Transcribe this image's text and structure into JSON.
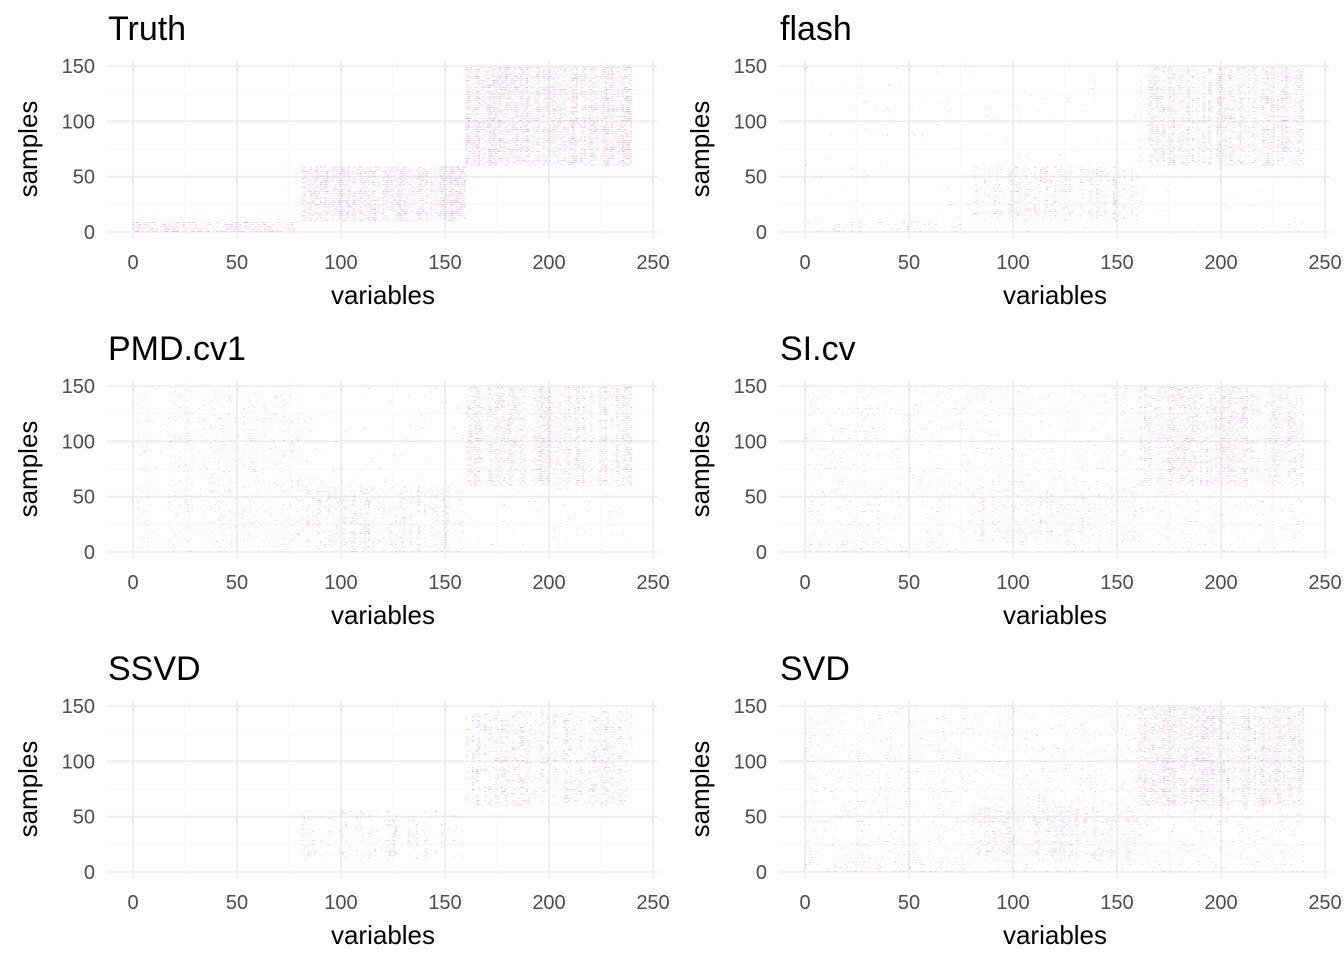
{
  "chart_data": [
    {
      "type": "heatmap",
      "title": "Truth",
      "xlabel": "variables",
      "ylabel": "samples",
      "xlim": [
        0,
        240
      ],
      "ylim": [
        0,
        150
      ],
      "xticks": [
        "0",
        "50",
        "100",
        "150",
        "200",
        "250"
      ],
      "yticks": [
        "0",
        "50",
        "100",
        "150"
      ],
      "grid": true,
      "blocks": [
        {
          "x": [
            1,
            80
          ],
          "y": [
            1,
            10
          ],
          "density": 0.9,
          "intensity": 0.55
        },
        {
          "x": [
            81,
            160
          ],
          "y": [
            11,
            60
          ],
          "density": 0.9,
          "intensity": 0.55
        },
        {
          "x": [
            161,
            240
          ],
          "y": [
            61,
            150
          ],
          "density": 0.9,
          "intensity": 0.6
        }
      ],
      "noise": 0
    },
    {
      "type": "heatmap",
      "title": "flash",
      "xlabel": "variables",
      "ylabel": "samples",
      "xlim": [
        0,
        240
      ],
      "ylim": [
        0,
        150
      ],
      "xticks": [
        "0",
        "50",
        "100",
        "150",
        "200",
        "250"
      ],
      "yticks": [
        "0",
        "50",
        "100",
        "150"
      ],
      "grid": true,
      "blocks": [
        {
          "x": [
            1,
            80
          ],
          "y": [
            1,
            10
          ],
          "density": 0.35,
          "intensity": 0.45
        },
        {
          "x": [
            81,
            160
          ],
          "y": [
            11,
            60
          ],
          "density": 0.55,
          "intensity": 0.5
        },
        {
          "x": [
            161,
            240
          ],
          "y": [
            61,
            150
          ],
          "density": 0.75,
          "intensity": 0.55
        }
      ],
      "noise": 0.04
    },
    {
      "type": "heatmap",
      "title": "PMD.cv1",
      "xlabel": "variables",
      "ylabel": "samples",
      "xlim": [
        0,
        240
      ],
      "ylim": [
        0,
        150
      ],
      "xticks": [
        "0",
        "50",
        "100",
        "150",
        "200",
        "250"
      ],
      "yticks": [
        "0",
        "50",
        "100",
        "150"
      ],
      "grid": true,
      "blocks": [
        {
          "x": [
            1,
            80
          ],
          "y": [
            1,
            150
          ],
          "density": 0.3,
          "intensity": 0.35
        },
        {
          "x": [
            81,
            160
          ],
          "y": [
            1,
            60
          ],
          "density": 0.55,
          "intensity": 0.45
        },
        {
          "x": [
            161,
            240
          ],
          "y": [
            61,
            150
          ],
          "density": 0.75,
          "intensity": 0.5
        }
      ],
      "noise": 0.08
    },
    {
      "type": "heatmap",
      "title": "SI.cv",
      "xlabel": "variables",
      "ylabel": "samples",
      "xlim": [
        0,
        240
      ],
      "ylim": [
        0,
        150
      ],
      "xticks": [
        "0",
        "50",
        "100",
        "150",
        "200",
        "250"
      ],
      "yticks": [
        "0",
        "50",
        "100",
        "150"
      ],
      "grid": true,
      "blocks": [
        {
          "x": [
            1,
            80
          ],
          "y": [
            1,
            10
          ],
          "density": 0.4,
          "intensity": 0.35
        },
        {
          "x": [
            81,
            160
          ],
          "y": [
            11,
            60
          ],
          "density": 0.45,
          "intensity": 0.35
        },
        {
          "x": [
            161,
            240
          ],
          "y": [
            61,
            150
          ],
          "density": 0.7,
          "intensity": 0.45
        }
      ],
      "noise": 0.3
    },
    {
      "type": "heatmap",
      "title": "SSVD",
      "xlabel": "variables",
      "ylabel": "samples",
      "xlim": [
        0,
        240
      ],
      "ylim": [
        0,
        150
      ],
      "xticks": [
        "0",
        "50",
        "100",
        "150",
        "200",
        "250"
      ],
      "yticks": [
        "0",
        "50",
        "100",
        "150"
      ],
      "grid": true,
      "blocks": [
        {
          "x": [
            81,
            160
          ],
          "y": [
            11,
            55
          ],
          "density": 0.35,
          "intensity": 0.5
        },
        {
          "x": [
            161,
            240
          ],
          "y": [
            61,
            145
          ],
          "density": 0.45,
          "intensity": 0.55
        }
      ],
      "noise": 0
    },
    {
      "type": "heatmap",
      "title": "SVD",
      "xlabel": "variables",
      "ylabel": "samples",
      "xlim": [
        0,
        240
      ],
      "ylim": [
        0,
        150
      ],
      "xticks": [
        "0",
        "50",
        "100",
        "150",
        "200",
        "250"
      ],
      "yticks": [
        "0",
        "50",
        "100",
        "150"
      ],
      "grid": true,
      "blocks": [
        {
          "x": [
            1,
            80
          ],
          "y": [
            1,
            10
          ],
          "density": 0.45,
          "intensity": 0.4
        },
        {
          "x": [
            81,
            160
          ],
          "y": [
            11,
            60
          ],
          "density": 0.55,
          "intensity": 0.4
        },
        {
          "x": [
            161,
            240
          ],
          "y": [
            61,
            150
          ],
          "density": 0.75,
          "intensity": 0.5
        }
      ],
      "noise": 0.4
    }
  ],
  "colors": {
    "positive": "#e8208f",
    "negative": "#3b3bff",
    "grid": "#ebebeb",
    "tick_text": "#4d4d4d",
    "title_text": "#000000"
  }
}
